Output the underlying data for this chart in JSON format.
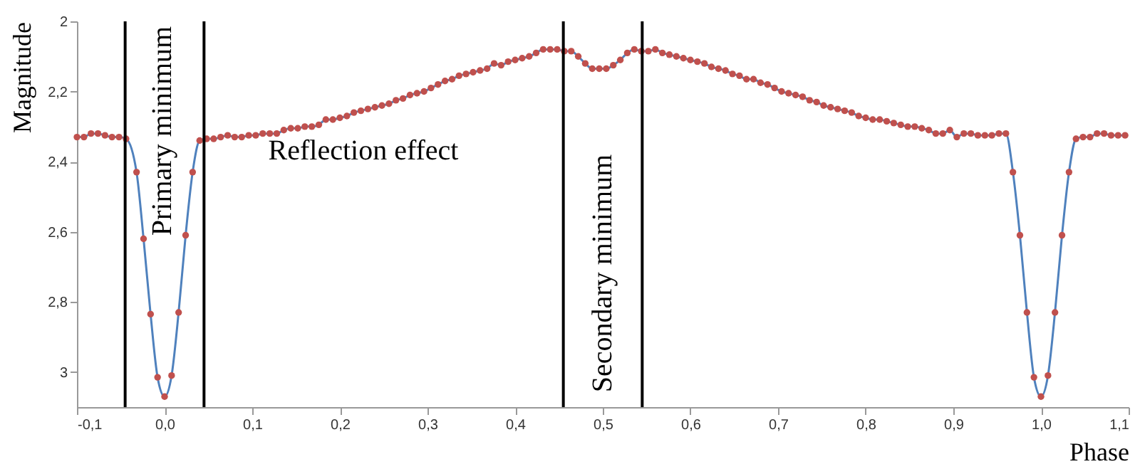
{
  "chart_data": {
    "type": "line",
    "xlabel": "Phase",
    "ylabel": "Magnitude",
    "x": [
      -0.1,
      -0.092,
      -0.084,
      -0.076,
      -0.068,
      -0.06,
      -0.052,
      -0.044,
      -0.032,
      -0.024,
      -0.016,
      -0.008,
      0,
      0.008,
      0.016,
      0.024,
      0.032,
      0.04,
      0.048,
      0.056,
      0.064,
      0.072,
      0.08,
      0.088,
      0.096,
      0.104,
      0.112,
      0.12,
      0.128,
      0.136,
      0.144,
      0.152,
      0.16,
      0.168,
      0.176,
      0.184,
      0.192,
      0.2,
      0.208,
      0.216,
      0.224,
      0.232,
      0.24,
      0.248,
      0.256,
      0.264,
      0.272,
      0.28,
      0.288,
      0.296,
      0.304,
      0.312,
      0.32,
      0.328,
      0.336,
      0.344,
      0.352,
      0.36,
      0.368,
      0.376,
      0.384,
      0.392,
      0.4,
      0.408,
      0.416,
      0.424,
      0.432,
      0.44,
      0.448,
      0.456,
      0.464,
      0.472,
      0.48,
      0.488,
      0.496,
      0.504,
      0.512,
      0.52,
      0.528,
      0.536,
      0.544,
      0.552,
      0.56,
      0.568,
      0.576,
      0.584,
      0.592,
      0.6,
      0.608,
      0.616,
      0.624,
      0.632,
      0.64,
      0.648,
      0.656,
      0.664,
      0.672,
      0.68,
      0.688,
      0.696,
      0.704,
      0.712,
      0.72,
      0.728,
      0.736,
      0.744,
      0.752,
      0.76,
      0.768,
      0.776,
      0.784,
      0.792,
      0.8,
      0.808,
      0.816,
      0.824,
      0.832,
      0.84,
      0.848,
      0.856,
      0.864,
      0.872,
      0.88,
      0.888,
      0.896,
      0.904,
      0.912,
      0.92,
      0.928,
      0.936,
      0.944,
      0.952,
      0.96,
      0.968,
      0.976,
      0.984,
      0.992,
      1.0,
      1.008,
      1.016,
      1.024,
      1.032,
      1.04,
      1.048,
      1.056,
      1.064,
      1.072,
      1.08,
      1.088,
      1.096
    ],
    "series": [
      {
        "color": "#4f81bd",
        "values": [
          2.33,
          2.33,
          2.32,
          2.32,
          2.325,
          2.33,
          2.33,
          2.335,
          2.43,
          2.62,
          2.835,
          3.015,
          3.07,
          3.01,
          2.83,
          2.61,
          2.43,
          2.34,
          2.335,
          2.335,
          2.33,
          2.325,
          2.33,
          2.33,
          2.325,
          2.325,
          2.32,
          2.32,
          2.32,
          2.31,
          2.305,
          2.305,
          2.3,
          2.3,
          2.295,
          2.28,
          2.28,
          2.275,
          2.27,
          2.26,
          2.255,
          2.25,
          2.245,
          2.24,
          2.235,
          2.225,
          2.22,
          2.21,
          2.205,
          2.2,
          2.19,
          2.18,
          2.17,
          2.165,
          2.155,
          2.15,
          2.145,
          2.14,
          2.135,
          2.12,
          2.125,
          2.115,
          2.11,
          2.105,
          2.1,
          2.09,
          2.08,
          2.08,
          2.08,
          2.085,
          2.085,
          2.1,
          2.12,
          2.135,
          2.135,
          2.135,
          2.125,
          2.11,
          2.09,
          2.08,
          2.085,
          2.085,
          2.08,
          2.09,
          2.095,
          2.1,
          2.105,
          2.11,
          2.115,
          2.12,
          2.13,
          2.135,
          2.14,
          2.15,
          2.155,
          2.165,
          2.165,
          2.175,
          2.18,
          2.19,
          2.2,
          2.205,
          2.21,
          2.215,
          2.225,
          2.23,
          2.24,
          2.245,
          2.25,
          2.255,
          2.26,
          2.27,
          2.275,
          2.28,
          2.28,
          2.285,
          2.29,
          2.295,
          2.3,
          2.3,
          2.305,
          2.31,
          2.32,
          2.32,
          2.31,
          2.33,
          2.32,
          2.32,
          2.325,
          2.325,
          2.325,
          2.32,
          2.32,
          2.43,
          2.61,
          2.83,
          3.015,
          3.07,
          3.01,
          2.83,
          2.61,
          2.43,
          2.335,
          2.33,
          2.33,
          2.32,
          2.32,
          2.325,
          2.325,
          2.325
        ]
      },
      {
        "type": "scatter",
        "color": "#c0504d",
        "values": [
          2.33,
          2.33,
          2.32,
          2.32,
          2.325,
          2.33,
          2.33,
          2.335,
          2.43,
          2.62,
          2.835,
          3.015,
          3.07,
          3.01,
          2.83,
          2.61,
          2.43,
          2.34,
          2.335,
          2.335,
          2.33,
          2.325,
          2.33,
          2.33,
          2.325,
          2.325,
          2.32,
          2.32,
          2.32,
          2.31,
          2.305,
          2.305,
          2.3,
          2.3,
          2.295,
          2.28,
          2.28,
          2.275,
          2.27,
          2.26,
          2.255,
          2.25,
          2.245,
          2.24,
          2.235,
          2.225,
          2.22,
          2.21,
          2.205,
          2.2,
          2.19,
          2.18,
          2.17,
          2.165,
          2.155,
          2.15,
          2.145,
          2.14,
          2.135,
          2.12,
          2.125,
          2.115,
          2.11,
          2.105,
          2.1,
          2.09,
          2.08,
          2.08,
          2.08,
          2.085,
          2.085,
          2.1,
          2.12,
          2.135,
          2.135,
          2.135,
          2.125,
          2.11,
          2.09,
          2.08,
          2.085,
          2.085,
          2.08,
          2.09,
          2.095,
          2.1,
          2.105,
          2.11,
          2.115,
          2.12,
          2.13,
          2.135,
          2.14,
          2.15,
          2.155,
          2.165,
          2.165,
          2.175,
          2.18,
          2.19,
          2.2,
          2.205,
          2.21,
          2.215,
          2.225,
          2.23,
          2.24,
          2.245,
          2.25,
          2.255,
          2.26,
          2.27,
          2.275,
          2.28,
          2.28,
          2.285,
          2.29,
          2.295,
          2.3,
          2.3,
          2.305,
          2.31,
          2.32,
          2.32,
          2.31,
          2.33,
          2.32,
          2.32,
          2.325,
          2.325,
          2.325,
          2.32,
          2.32,
          2.43,
          2.61,
          2.83,
          3.015,
          3.07,
          3.01,
          2.83,
          2.61,
          2.43,
          2.335,
          2.33,
          2.33,
          2.32,
          2.32,
          2.325,
          2.325,
          2.325
        ]
      }
    ],
    "xlim": [
      -0.1,
      1.1
    ],
    "xticks": [
      {
        "value": -0.1,
        "label": "-0,1"
      },
      {
        "value": 0,
        "label": "0,0"
      },
      {
        "value": 0.1,
        "label": "0,1"
      },
      {
        "value": 0.2,
        "label": "0,2"
      },
      {
        "value": 0.3,
        "label": "0,3"
      },
      {
        "value": 0.4,
        "label": "0,4"
      },
      {
        "value": 0.5,
        "label": "0,5"
      },
      {
        "value": 0.6,
        "label": "0,6"
      },
      {
        "value": 0.7,
        "label": "0,7"
      },
      {
        "value": 0.8,
        "label": "0,8"
      },
      {
        "value": 0.9,
        "label": "0,9"
      },
      {
        "value": 1.0,
        "label": "1,0"
      },
      {
        "value": 1.1,
        "label": "1,1"
      }
    ],
    "ylim": [
      3.1,
      2
    ],
    "yticks": [
      2,
      {
        "value": 2.2,
        "label": "2,2"
      },
      {
        "value": 2.4,
        "label": "2,4"
      },
      {
        "value": 2.6,
        "label": "2,6"
      },
      {
        "value": 2.8,
        "label": "2,8"
      },
      3
    ],
    "ref_lines": [
      {
        "axis": "x",
        "value": -0.045,
        "color": "#000000"
      },
      {
        "axis": "x",
        "value": 0.045,
        "color": "#000000"
      },
      {
        "axis": "x",
        "value": 0.455,
        "color": "#000000"
      },
      {
        "axis": "x",
        "value": 0.545,
        "color": "#000000"
      }
    ],
    "annotations": [
      "Primary minimum",
      "Reflection effect",
      "Secondary minimum"
    ],
    "grid": false
  }
}
